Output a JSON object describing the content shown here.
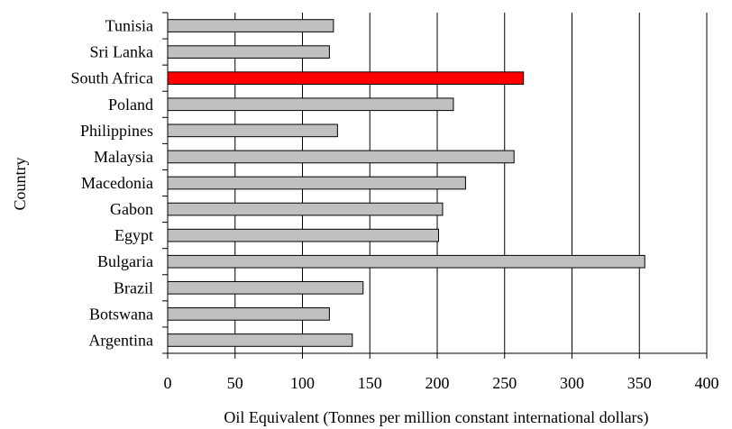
{
  "chart_data": {
    "type": "bar",
    "orientation": "horizontal",
    "categories": [
      "Tunisia",
      "Sri Lanka",
      "South Africa",
      "Poland",
      "Philippines",
      "Malaysia",
      "Macedonia",
      "Gabon",
      "Egypt",
      "Bulgaria",
      "Brazil",
      "Botswana",
      "Argentina"
    ],
    "values": [
      123,
      120,
      264,
      212,
      126,
      257,
      221,
      204,
      201,
      354,
      145,
      120,
      137
    ],
    "xlabel": "Oil Equivalent (Tonnes per million constant international dollars)",
    "ylabel": "Country",
    "xlim": [
      0,
      400
    ],
    "xticks": [
      0,
      50,
      100,
      150,
      200,
      250,
      300,
      350,
      400
    ],
    "grid": "vertical",
    "highlight_category": "South Africa",
    "colors": {
      "bar": "#c0c0c0",
      "highlight": "#ff0000",
      "bar_edge": "#000000",
      "grid": "#000000"
    }
  }
}
